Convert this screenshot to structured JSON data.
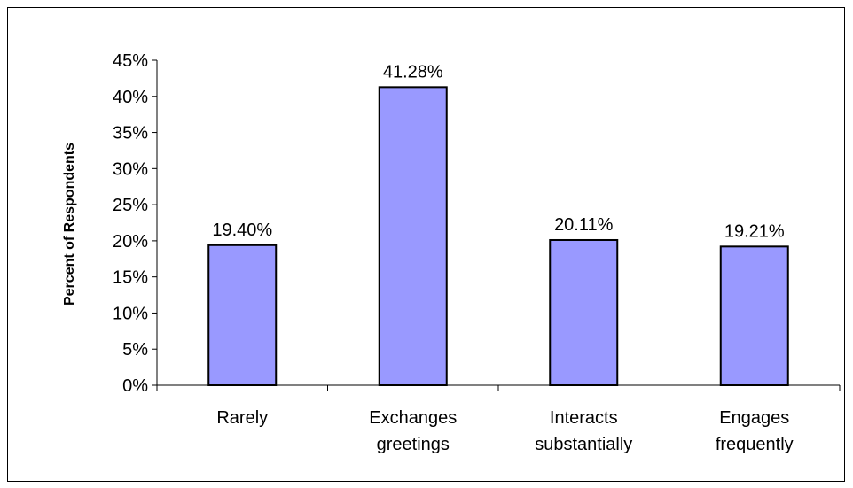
{
  "chart_data": {
    "type": "bar",
    "title": "",
    "xlabel": "",
    "ylabel": "Percent of Respondents",
    "categories": [
      [
        "Rarely"
      ],
      [
        "Exchanges",
        "greetings"
      ],
      [
        "Interacts",
        "substantially"
      ],
      [
        "Engages",
        "frequently"
      ]
    ],
    "values": [
      19.4,
      41.28,
      20.11,
      19.21
    ],
    "data_labels": [
      "19.40%",
      "41.28%",
      "20.11%",
      "19.21%"
    ],
    "ylim": [
      0,
      45
    ],
    "yticks": [
      "0%",
      "5%",
      "10%",
      "15%",
      "20%",
      "25%",
      "30%",
      "35%",
      "40%",
      "45%"
    ],
    "grid": false,
    "legend": "none",
    "bar_color": "#9999ff",
    "bar_stroke": "#000000"
  }
}
